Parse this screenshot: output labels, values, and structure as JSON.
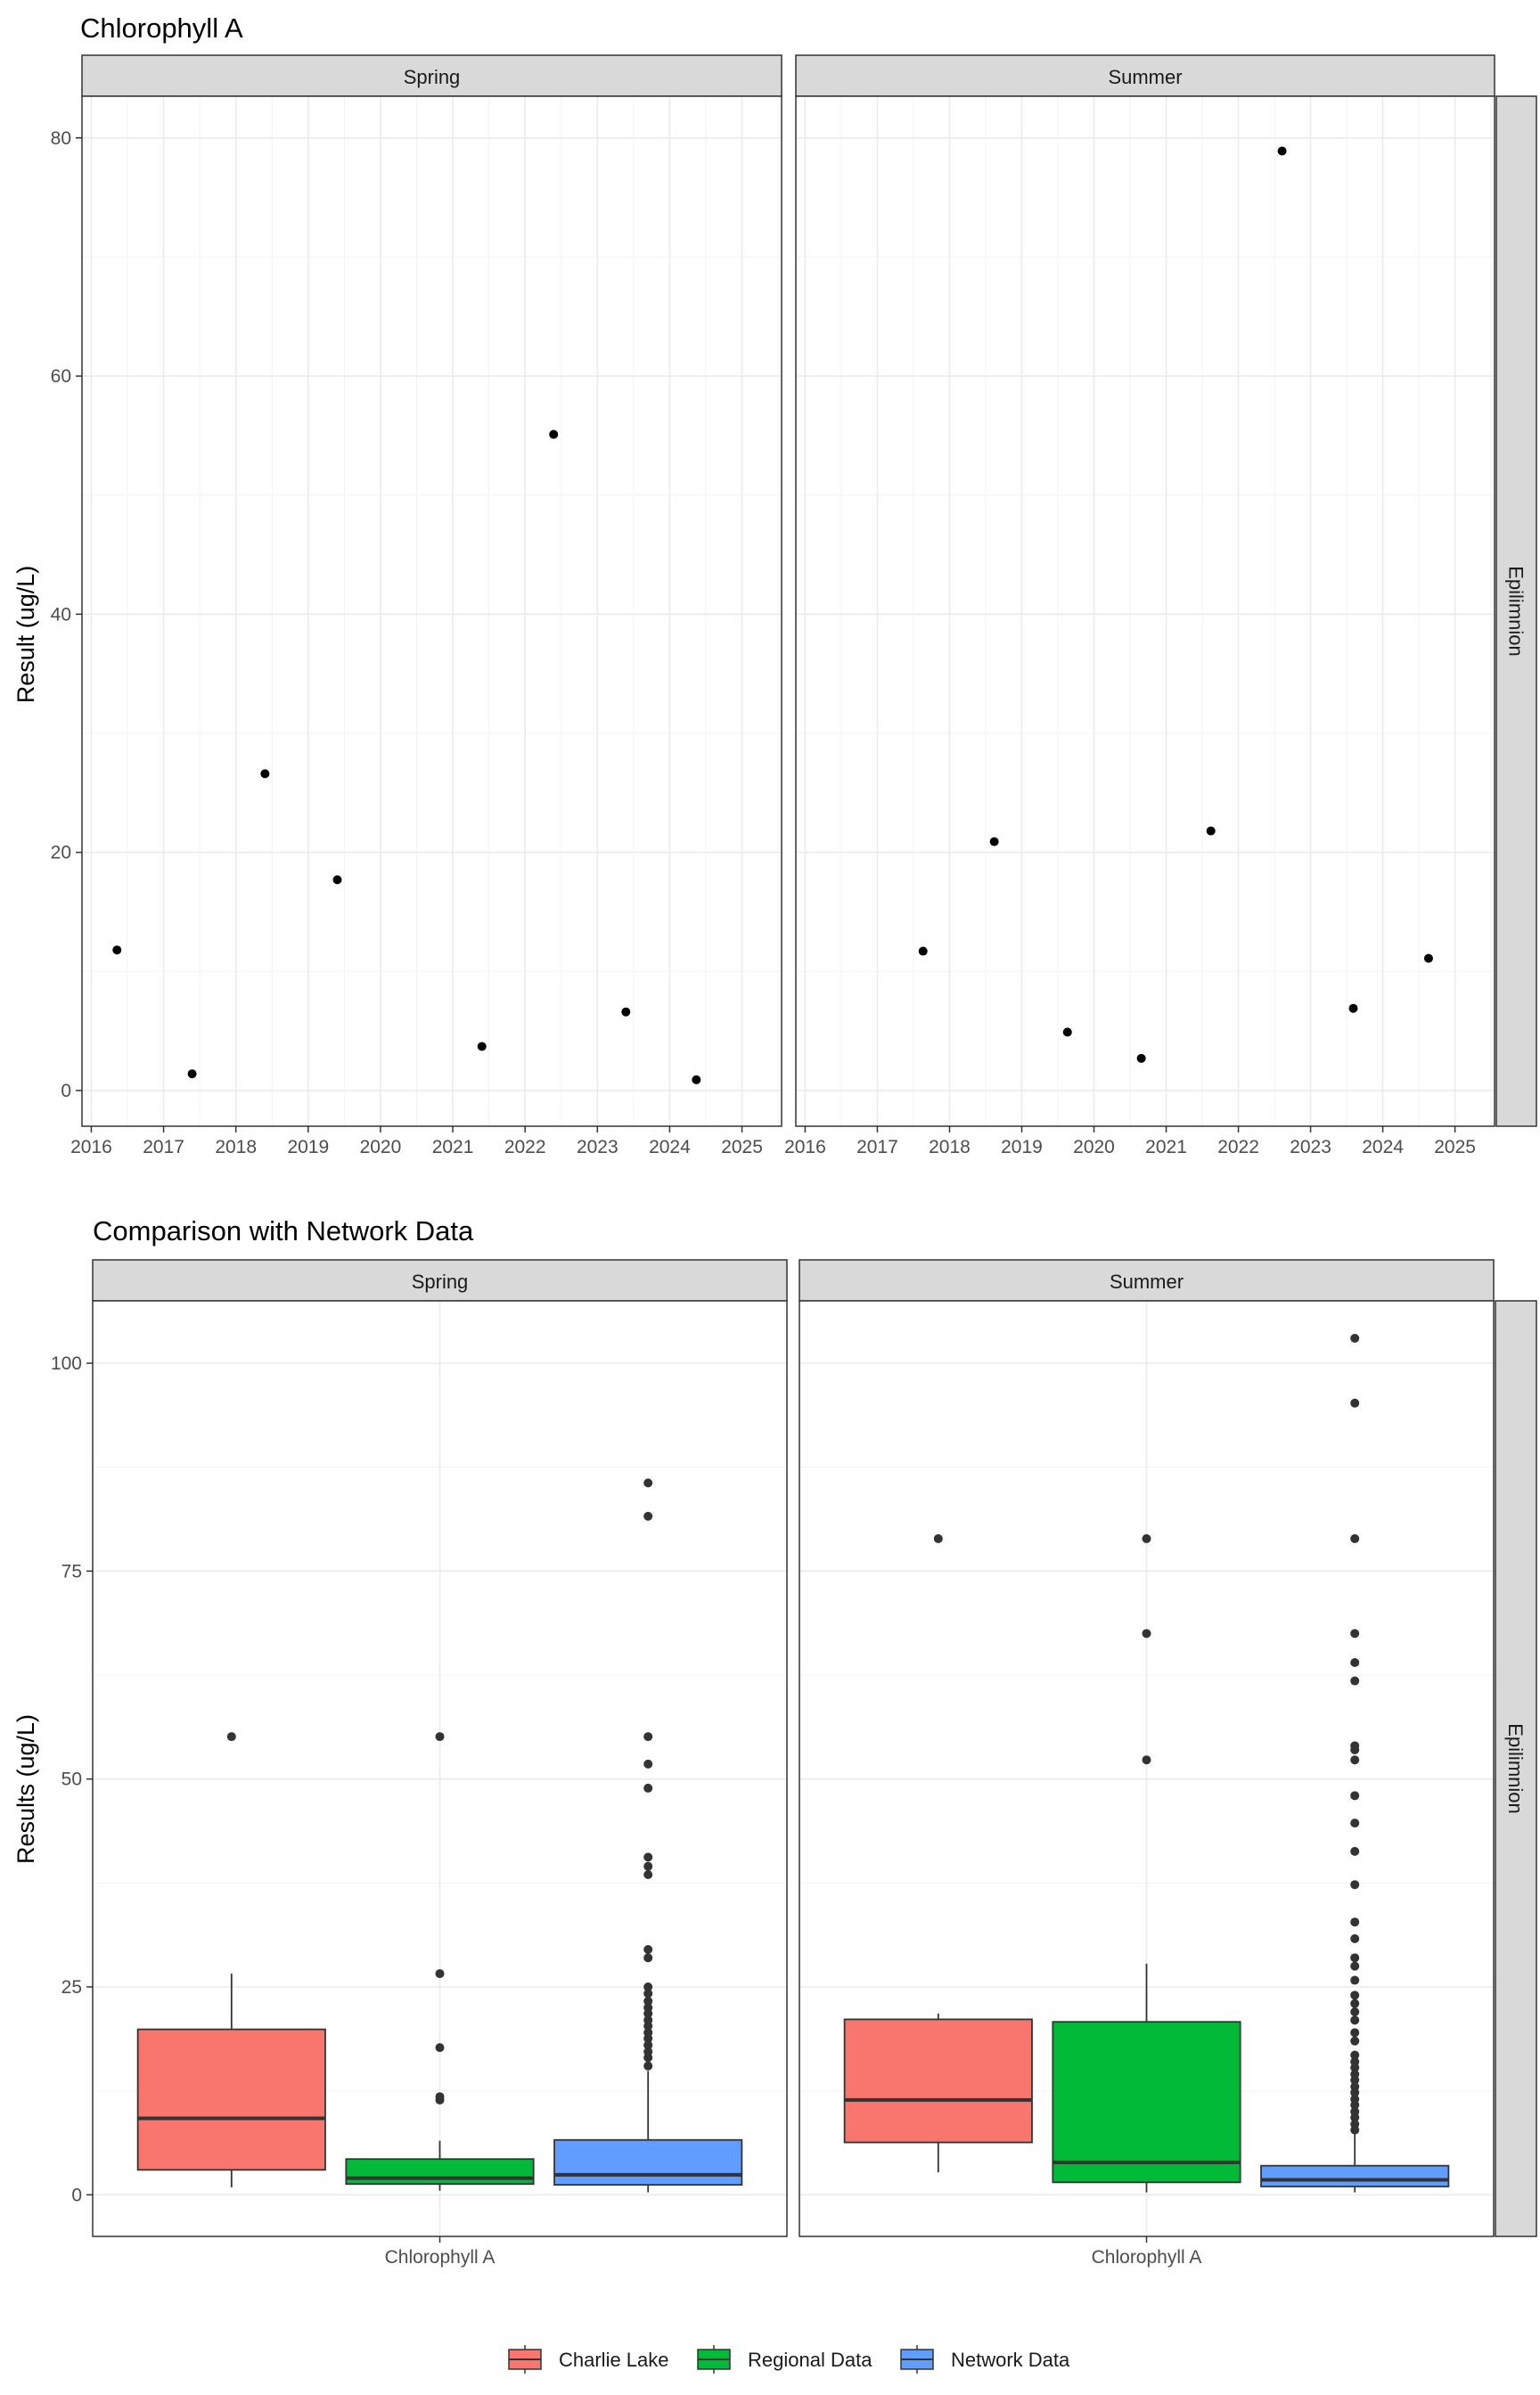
{
  "chart_data": [
    {
      "type": "scatter",
      "title": "Chlorophyll A",
      "ylabel": "Result (ug/L)",
      "xlabel": "",
      "ylim": [
        -3,
        83.5
      ],
      "yticks": [
        0,
        20,
        40,
        60,
        80
      ],
      "xticks": [
        "2016",
        "2017",
        "2018",
        "2019",
        "2020",
        "2021",
        "2022",
        "2023",
        "2024",
        "2025"
      ],
      "xlim": [
        "2015-11-15",
        "2025-07-20"
      ],
      "row_strip": "Epilimnion",
      "grid": true,
      "point_color": "#000000",
      "facets": [
        {
          "strip": "Spring",
          "points": [
            {
              "x": "2016-05-10",
              "y": 11.8
            },
            {
              "x": "2017-05-25",
              "y": 1.4
            },
            {
              "x": "2018-05-28",
              "y": 26.6
            },
            {
              "x": "2019-05-28",
              "y": 17.7
            },
            {
              "x": "2021-05-28",
              "y": 3.7
            },
            {
              "x": "2022-05-25",
              "y": 55.1
            },
            {
              "x": "2023-05-25",
              "y": 6.6
            },
            {
              "x": "2024-05-15",
              "y": 0.9
            }
          ]
        },
        {
          "strip": "Summer",
          "points": [
            {
              "x": "2017-08-20",
              "y": 11.7
            },
            {
              "x": "2018-08-15",
              "y": 20.9
            },
            {
              "x": "2019-08-20",
              "y": 4.9
            },
            {
              "x": "2020-08-28",
              "y": 2.7
            },
            {
              "x": "2021-08-15",
              "y": 21.8
            },
            {
              "x": "2022-08-10",
              "y": 78.9
            },
            {
              "x": "2023-08-05",
              "y": 6.9
            },
            {
              "x": "2024-08-20",
              "y": 11.1
            }
          ]
        }
      ]
    },
    {
      "type": "boxplot",
      "title": "Comparison with Network Data",
      "ylabel": "Results (ug/L)",
      "ylim": [
        -5,
        107.5
      ],
      "yticks": [
        0,
        25,
        50,
        75,
        100
      ],
      "category": "Chlorophyll A",
      "row_strip": "Epilimnion",
      "grid": true,
      "legend_position": "bottom",
      "series": [
        {
          "name": "Charlie Lake",
          "color": "#F8766D"
        },
        {
          "name": "Regional Data",
          "color": "#00BA38"
        },
        {
          "name": "Network Data",
          "color": "#619CFF"
        }
      ],
      "facets": [
        {
          "strip": "Spring",
          "boxes": [
            {
              "series": "Charlie Lake",
              "min": 0.9,
              "q1": 3.0,
              "median": 9.2,
              "q3": 19.9,
              "max": 26.6,
              "outliers": [
                55.1
              ]
            },
            {
              "series": "Regional Data",
              "min": 0.5,
              "q1": 1.3,
              "median": 2.0,
              "q3": 4.3,
              "max": 6.5,
              "outliers": [
                11.4,
                11.8,
                17.7,
                26.6,
                55.1
              ]
            },
            {
              "series": "Network Data",
              "min": 0.3,
              "q1": 1.2,
              "median": 2.4,
              "q3": 6.6,
              "max": 14.9,
              "outliers": [
                15.5,
                16.5,
                17.2,
                18.0,
                18.8,
                19.5,
                20.3,
                21.0,
                21.8,
                22.5,
                23.3,
                24.2,
                25.0,
                28.5,
                29.5,
                38.5,
                39.5,
                40.6,
                48.9,
                51.8,
                55.1,
                81.6,
                85.6
              ]
            }
          ]
        },
        {
          "strip": "Summer",
          "boxes": [
            {
              "series": "Charlie Lake",
              "min": 2.7,
              "q1": 6.3,
              "median": 11.4,
              "q3": 21.1,
              "max": 21.8,
              "outliers": [
                78.9
              ]
            },
            {
              "series": "Regional Data",
              "min": 0.3,
              "q1": 1.5,
              "median": 3.9,
              "q3": 20.8,
              "max": 27.8,
              "outliers": [
                52.3,
                67.5,
                78.9
              ]
            },
            {
              "series": "Network Data",
              "min": 0.3,
              "q1": 1.0,
              "median": 1.8,
              "q3": 3.5,
              "max": 7.3,
              "outliers": [
                7.8,
                8.5,
                9.3,
                10.0,
                10.8,
                11.5,
                12.3,
                13.0,
                13.8,
                14.5,
                15.3,
                16.0,
                16.8,
                18.5,
                19.5,
                21.0,
                22.0,
                23.0,
                24.0,
                25.8,
                27.5,
                28.5,
                30.8,
                32.8,
                37.3,
                41.3,
                44.7,
                48.0,
                52.3,
                53.5,
                54.0,
                61.8,
                64.0,
                67.5,
                78.9,
                95.2,
                103.0
              ]
            }
          ]
        }
      ]
    }
  ]
}
